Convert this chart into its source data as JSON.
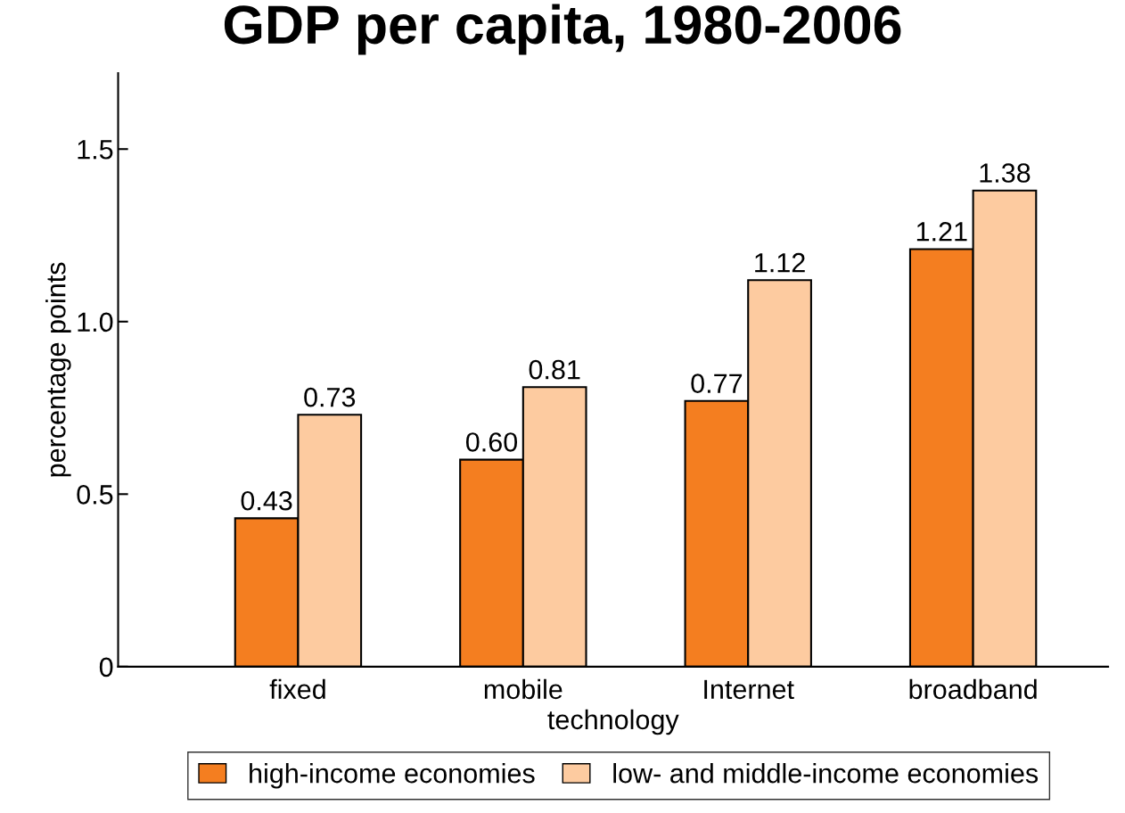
{
  "chart_data": {
    "type": "bar",
    "title": "GDP per capita, 1980-2006",
    "xlabel": "technology",
    "ylabel": "percentage points",
    "categories": [
      "fixed",
      "mobile",
      "Internet",
      "broadband"
    ],
    "series": [
      {
        "name": "high-income economies",
        "color": "#f47e20",
        "values": [
          0.43,
          0.6,
          0.77,
          1.21
        ],
        "value_labels": [
          "0.43",
          "0.60",
          "0.77",
          "1.21"
        ]
      },
      {
        "name": "low- and middle-income economies",
        "color": "#fdcba0",
        "values": [
          0.73,
          0.81,
          1.12,
          1.38
        ],
        "value_labels": [
          "0.73",
          "0.81",
          "1.12",
          "1.38"
        ]
      }
    ],
    "ylim": [
      0,
      1.72
    ],
    "yticks": [
      0,
      {
        "value": 0.5,
        "label": "0.5"
      },
      {
        "value": 1.0,
        "label": "1.0"
      },
      {
        "value": 1.5,
        "label": "1.5"
      }
    ],
    "legend": "bottom",
    "grid": false
  }
}
